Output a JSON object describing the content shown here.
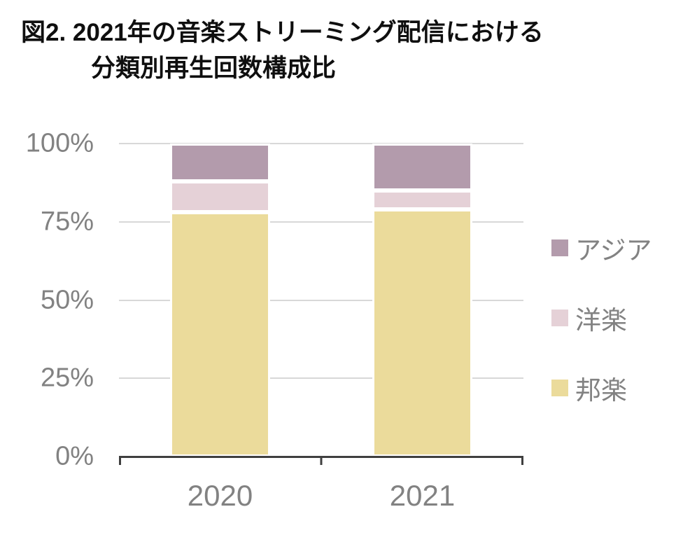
{
  "title": {
    "line1": "図2. 2021年の音楽ストリーミング配信における",
    "line2": "分類別再生回数構成比"
  },
  "chart_data": {
    "type": "bar",
    "subtype": "stacked-100-percent",
    "title": "図2. 2021年の音楽ストリーミング配信における分類別再生回数構成比",
    "categories": [
      "2020",
      "2021"
    ],
    "series": [
      {
        "name": "邦楽",
        "color": "#EBDB9B",
        "values": [
          78,
          79
        ]
      },
      {
        "name": "洋楽",
        "color": "#E5D1D7",
        "values": [
          10,
          6
        ]
      },
      {
        "name": "アジア",
        "color": "#B39BAC",
        "values": [
          12,
          15
        ]
      }
    ],
    "unit": "%",
    "ylim": [
      0,
      100
    ],
    "y_ticks": [
      "100%",
      "75%",
      "50%",
      "25%",
      "0%"
    ],
    "legend": {
      "position": "right",
      "order": [
        "アジア",
        "洋楽",
        "邦楽"
      ]
    },
    "grid": true
  }
}
